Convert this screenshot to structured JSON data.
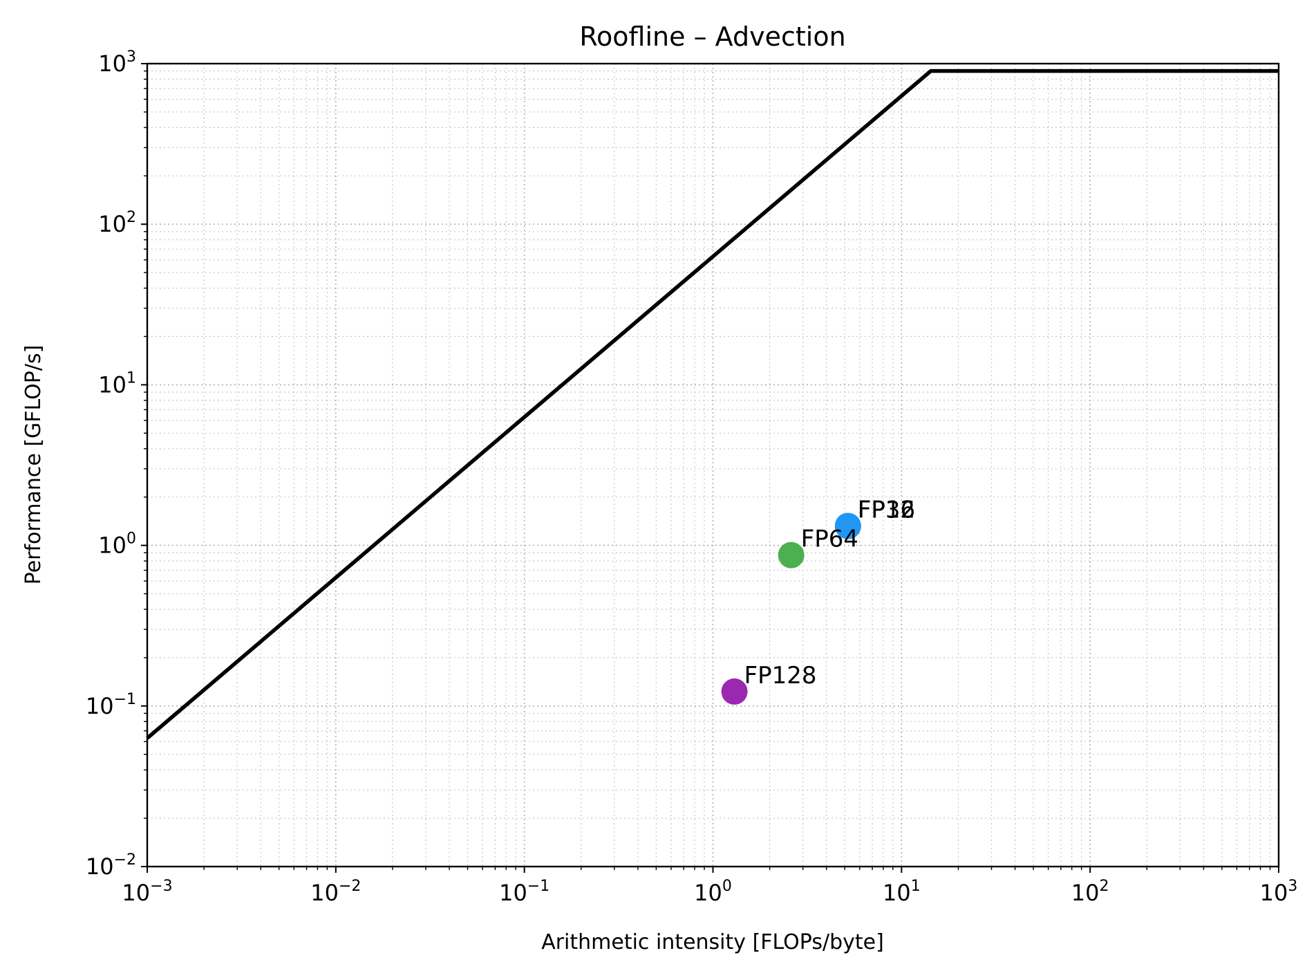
{
  "chart_data": {
    "type": "scatter",
    "title": "Roofline – Advection",
    "xlabel": "Arithmetic intensity [FLOPs/byte]",
    "ylabel": "Performance [GFLOP/s]",
    "xscale": "log",
    "yscale": "log",
    "xlim": [
      0.001,
      1000
    ],
    "ylim": [
      0.01,
      1000
    ],
    "grid": true,
    "x_ticks": [
      {
        "base": "10",
        "exp": "−3"
      },
      {
        "base": "10",
        "exp": "−2"
      },
      {
        "base": "10",
        "exp": "−1"
      },
      {
        "base": "10",
        "exp": "0"
      },
      {
        "base": "10",
        "exp": "1"
      },
      {
        "base": "10",
        "exp": "2"
      },
      {
        "base": "10",
        "exp": "3"
      }
    ],
    "y_ticks": [
      {
        "base": "10",
        "exp": "−2"
      },
      {
        "base": "10",
        "exp": "−1"
      },
      {
        "base": "10",
        "exp": "0"
      },
      {
        "base": "10",
        "exp": "1"
      },
      {
        "base": "10",
        "exp": "2"
      },
      {
        "base": "10",
        "exp": "3"
      }
    ],
    "roofline": {
      "color": "#000000",
      "peak_gflops": 900,
      "bandwidth_gbs": 63,
      "ridge_intensity": 14.3
    },
    "points": [
      {
        "label": "FP16",
        "x": 5.2,
        "y": 1.32,
        "color": "#2196f3"
      },
      {
        "label": "FP32",
        "x": 5.2,
        "y": 1.32,
        "color": "#2196f3"
      },
      {
        "label": "FP64",
        "x": 2.6,
        "y": 0.87,
        "color": "#4caf50"
      },
      {
        "label": "FP128",
        "x": 1.3,
        "y": 0.123,
        "color": "#9c27b0"
      }
    ]
  }
}
